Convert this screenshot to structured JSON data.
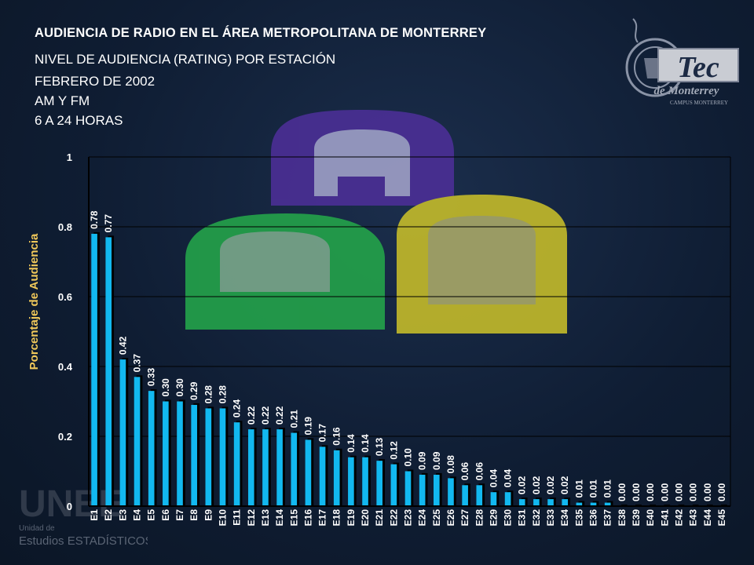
{
  "header": {
    "title": "AUDIENCIA DE RADIO EN EL ÁREA METROPOLITANA DE MONTERREY",
    "subtitle_lines": [
      "NIVEL DE AUDIENCIA (RATING) POR ESTACIÓN",
      "FEBRERO DE 2002",
      "AM Y FM",
      "6 A 24 HORAS"
    ]
  },
  "logo": {
    "wordmark": "Tec",
    "subtitle": "de Monterrey",
    "campus": "CAMPUS MONTERREY"
  },
  "watermark": {
    "big": "UNEE",
    "line1": "Unidad de",
    "line2": "Estudios ESTADÍSTICOS"
  },
  "colors": {
    "bar": "#12b8f0",
    "bar_shadow": "#000000",
    "label": "#ffffff",
    "axis_label": "#f0c85a",
    "grid": "#000000"
  },
  "chart_data": {
    "type": "bar",
    "ylabel": "Porcentaje de Audiencia",
    "xlabel": "",
    "ylim": [
      0,
      1
    ],
    "yticks": [
      0,
      0.2,
      0.4,
      0.6,
      0.8,
      1
    ],
    "ytick_labels": [
      "0",
      "0.2",
      "0.4",
      "0.6",
      "0.8",
      "1"
    ],
    "grid": true,
    "categories": [
      "E1",
      "E2",
      "E3",
      "E4",
      "E5",
      "E6",
      "E7",
      "E8",
      "E9",
      "E10",
      "E11",
      "E12",
      "E13",
      "E14",
      "E15",
      "E16",
      "E17",
      "E18",
      "E19",
      "E20",
      "E21",
      "E22",
      "E23",
      "E24",
      "E25",
      "E26",
      "E27",
      "E28",
      "E29",
      "E30",
      "E31",
      "E32",
      "E33",
      "E34",
      "E35",
      "E36",
      "E37",
      "E38",
      "E39",
      "E40",
      "E41",
      "E42",
      "E43",
      "E44",
      "E45"
    ],
    "values": [
      0.78,
      0.77,
      0.42,
      0.37,
      0.33,
      0.3,
      0.3,
      0.29,
      0.28,
      0.28,
      0.24,
      0.22,
      0.22,
      0.22,
      0.21,
      0.19,
      0.17,
      0.16,
      0.14,
      0.14,
      0.13,
      0.12,
      0.1,
      0.09,
      0.09,
      0.08,
      0.06,
      0.06,
      0.04,
      0.04,
      0.02,
      0.02,
      0.02,
      0.02,
      0.01,
      0.01,
      0.01,
      0.0,
      0.0,
      0.0,
      0.0,
      0.0,
      0.0,
      0.0,
      0.0
    ],
    "data_labels": [
      "0.78",
      "0.77",
      "0.42",
      "0.37",
      "0.33",
      "0.30",
      "0.30",
      "0.29",
      "0.28",
      "0.28",
      "0.24",
      "0.22",
      "0.22",
      "0.22",
      "0.21",
      "0.19",
      "0.17",
      "0.16",
      "0.14",
      "0.14",
      "0.13",
      "0.12",
      "0.10",
      "0.09",
      "0.09",
      "0.08",
      "0.06",
      "0.06",
      "0.04",
      "0.04",
      "0.02",
      "0.02",
      "0.02",
      "0.02",
      "0.01",
      "0.01",
      "0.01",
      "0.00",
      "0.00",
      "0.00",
      "0.00",
      "0.00",
      "0.00",
      "0.00",
      "0.00"
    ]
  }
}
